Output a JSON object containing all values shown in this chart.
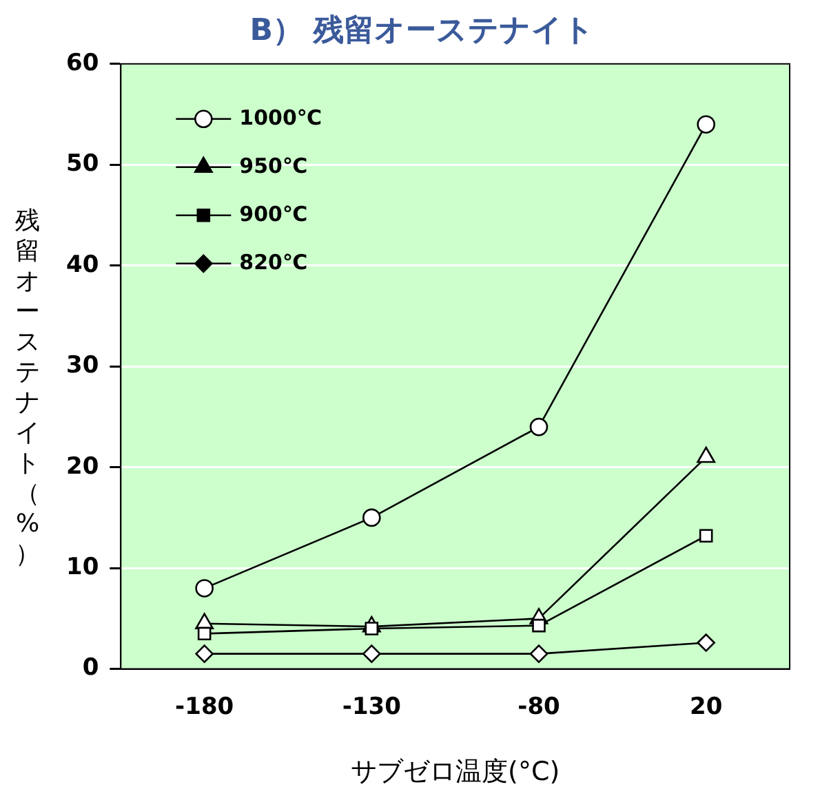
{
  "chart_data": {
    "type": "line",
    "title": "B） 残留オーステナイト",
    "xlabel": "サブゼロ温度(°C)",
    "ylabel": "残留オーステナイト（%）",
    "categories": [
      "-180",
      "-130",
      "-80",
      "20"
    ],
    "series": [
      {
        "name": "1000℃",
        "color": "#000000",
        "marker": "circle",
        "values": [
          8,
          15,
          24,
          54
        ]
      },
      {
        "name": "950℃",
        "color": "#000000",
        "marker": "triangle",
        "values": [
          4.5,
          4.2,
          5,
          21
        ]
      },
      {
        "name": "900℃",
        "color": "#000000",
        "marker": "square",
        "values": [
          3.5,
          4,
          4.3,
          13.2
        ]
      },
      {
        "name": "820℃",
        "color": "#000000",
        "marker": "diamond",
        "values": [
          1.5,
          1.5,
          1.5,
          2.6
        ]
      }
    ],
    "ylim": [
      0,
      60
    ],
    "yticks": [
      0,
      10,
      20,
      30,
      40,
      50,
      60
    ],
    "grid": "y",
    "legend": "top left",
    "line_style": "solid"
  }
}
